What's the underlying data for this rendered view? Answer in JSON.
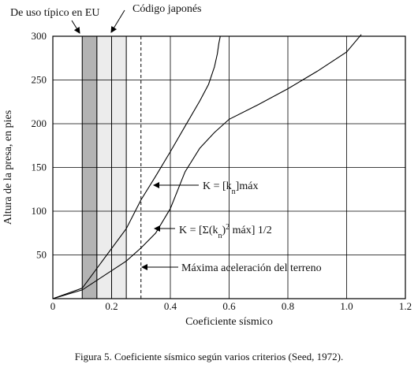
{
  "figure": {
    "caption": "Figura 5. Coeficiente sísmico según varios criterios (Seed, 1972)."
  },
  "chart_data": {
    "type": "line",
    "xlabel": "Coeficiente sísmico",
    "ylabel": "Altura de la presa, en pies",
    "xlim": [
      0,
      1.2
    ],
    "ylim": [
      0,
      300
    ],
    "x_ticks": [
      0,
      0.2,
      0.4,
      0.6,
      0.8,
      1.0,
      1.2
    ],
    "x_tick_labels": [
      "0",
      "0.2",
      "0.4",
      "0.6",
      "0.8",
      "1.0",
      "1.2"
    ],
    "y_ticks": [
      50,
      100,
      150,
      200,
      250,
      300
    ],
    "y_tick_labels": [
      "50",
      "100",
      "150",
      "200",
      "250",
      "300"
    ],
    "grid": true,
    "bands": [
      {
        "label": "De uso típico en  EU",
        "x": [
          0.1,
          0.15
        ],
        "color": "#b3b3b3"
      },
      {
        "label": "Código japonés",
        "x": [
          0.15,
          0.25
        ],
        "color": "#ececec"
      }
    ],
    "band_divider_x": 0.2,
    "vertical_line": {
      "x": 0.3,
      "style": "dashed",
      "label": "Máxima aceleración del terreno"
    },
    "series": [
      {
        "label_prefix": "K = [k",
        "label_sub": "n",
        "label_suffix": "]máx",
        "points": [
          [
            0.0,
            0
          ],
          [
            0.1,
            12
          ],
          [
            0.25,
            80
          ],
          [
            0.3,
            113
          ],
          [
            0.35,
            140
          ],
          [
            0.4,
            168
          ],
          [
            0.45,
            197
          ],
          [
            0.5,
            226
          ],
          [
            0.53,
            245
          ],
          [
            0.55,
            265
          ],
          [
            0.56,
            280
          ],
          [
            0.565,
            292
          ],
          [
            0.57,
            300
          ]
        ]
      },
      {
        "label_prefix": "K = [Σ(k",
        "label_sub": "n",
        "label_sup": "2",
        "label_suffix": " máx] 1/2",
        "points": [
          [
            0.0,
            0
          ],
          [
            0.1,
            10
          ],
          [
            0.25,
            43
          ],
          [
            0.3,
            58
          ],
          [
            0.35,
            75
          ],
          [
            0.4,
            103
          ],
          [
            0.45,
            145
          ],
          [
            0.5,
            172
          ],
          [
            0.55,
            190
          ],
          [
            0.6,
            205
          ],
          [
            0.7,
            222
          ],
          [
            0.8,
            240
          ],
          [
            0.9,
            260
          ],
          [
            1.0,
            282
          ],
          [
            1.05,
            302
          ]
        ]
      }
    ]
  }
}
